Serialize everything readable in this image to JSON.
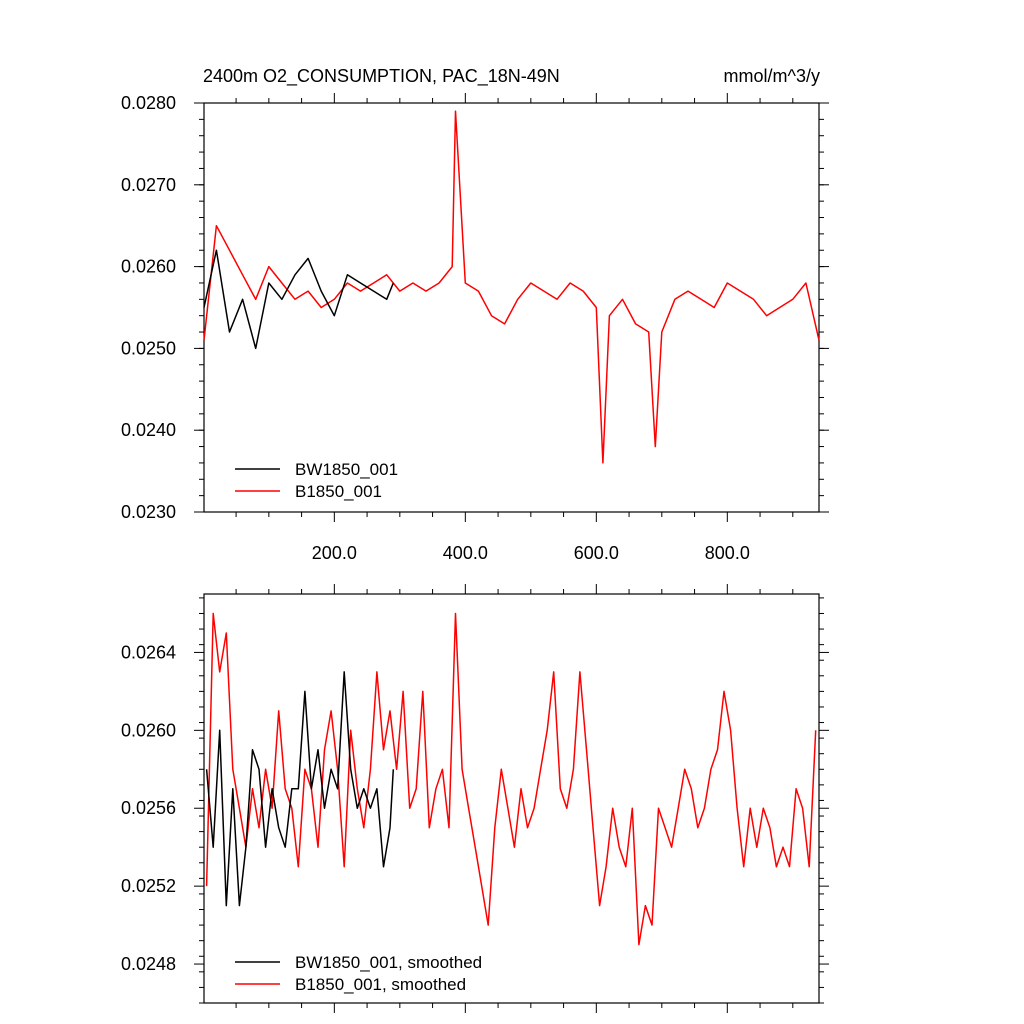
{
  "chart_data": [
    {
      "type": "line",
      "title": "2400m O2_CONSUMPTION, PAC_18N-49N",
      "units": "mmol/m^3/y",
      "xlim": [
        1,
        940
      ],
      "ylim": [
        0.023,
        0.028
      ],
      "x_ticks": [
        200,
        400,
        600,
        800
      ],
      "x_tick_labels": [
        "200.0",
        "400.0",
        "600.0",
        "800.0"
      ],
      "y_ticks": [
        0.023,
        0.024,
        0.025,
        0.026,
        0.027,
        0.028
      ],
      "y_tick_labels": [
        "0.0230",
        "0.0240",
        "0.0250",
        "0.0260",
        "0.0270",
        "0.0280"
      ],
      "legend_position": "bottom-left",
      "series": [
        {
          "name": "BW1850_001",
          "color": "#000000",
          "x": [
            1,
            20,
            40,
            60,
            80,
            100,
            120,
            140,
            160,
            180,
            200,
            220,
            240,
            260,
            280,
            290
          ],
          "y": [
            0.0255,
            0.0262,
            0.0252,
            0.0256,
            0.025,
            0.0258,
            0.0256,
            0.0259,
            0.0261,
            0.0257,
            0.0254,
            0.0259,
            0.0258,
            0.0257,
            0.0256,
            0.0258
          ]
        },
        {
          "name": "B1850_001",
          "color": "#ff0000",
          "x": [
            1,
            20,
            40,
            60,
            80,
            100,
            120,
            140,
            160,
            180,
            200,
            220,
            240,
            260,
            280,
            300,
            320,
            340,
            360,
            380,
            385,
            400,
            420,
            440,
            460,
            480,
            500,
            520,
            540,
            560,
            580,
            600,
            610,
            620,
            640,
            660,
            680,
            690,
            700,
            720,
            740,
            760,
            780,
            800,
            820,
            840,
            860,
            880,
            900,
            920,
            940
          ],
          "y": [
            0.0251,
            0.0265,
            0.0262,
            0.0259,
            0.0256,
            0.026,
            0.0258,
            0.0256,
            0.0257,
            0.0255,
            0.0256,
            0.0258,
            0.0257,
            0.0258,
            0.0259,
            0.0257,
            0.0258,
            0.0257,
            0.0258,
            0.026,
            0.0279,
            0.0258,
            0.0257,
            0.0254,
            0.0253,
            0.0256,
            0.0258,
            0.0257,
            0.0256,
            0.0258,
            0.0257,
            0.0255,
            0.0236,
            0.0254,
            0.0256,
            0.0253,
            0.0252,
            0.0238,
            0.0252,
            0.0256,
            0.0257,
            0.0256,
            0.0255,
            0.0258,
            0.0257,
            0.0256,
            0.0254,
            0.0255,
            0.0256,
            0.0258,
            0.0251
          ]
        }
      ]
    },
    {
      "type": "line",
      "xlim": [
        1,
        940
      ],
      "ylim": [
        0.0246,
        0.0267
      ],
      "x_ticks": [
        200,
        400,
        600,
        800
      ],
      "y_ticks": [
        0.0248,
        0.0252,
        0.0256,
        0.026,
        0.0264
      ],
      "y_tick_labels": [
        "0.0248",
        "0.0252",
        "0.0256",
        "0.0260",
        "0.0264"
      ],
      "legend_position": "bottom-left",
      "series": [
        {
          "name": "BW1850_001, smoothed",
          "color": "#000000",
          "x": [
            5,
            15,
            25,
            35,
            45,
            55,
            65,
            75,
            85,
            95,
            105,
            115,
            125,
            135,
            145,
            155,
            165,
            175,
            185,
            195,
            205,
            215,
            225,
            235,
            245,
            255,
            265,
            275,
            285,
            290
          ],
          "y": [
            0.0258,
            0.0254,
            0.026,
            0.0251,
            0.0257,
            0.0251,
            0.0254,
            0.0259,
            0.0258,
            0.0254,
            0.0257,
            0.0255,
            0.0254,
            0.0257,
            0.0257,
            0.0262,
            0.0257,
            0.0259,
            0.0256,
            0.0258,
            0.0257,
            0.0263,
            0.0258,
            0.0256,
            0.0257,
            0.0256,
            0.0257,
            0.0253,
            0.0255,
            0.0258
          ]
        },
        {
          "name": "B1850_001, smoothed",
          "color": "#ff0000",
          "x": [
            5,
            15,
            25,
            35,
            45,
            55,
            65,
            75,
            85,
            95,
            105,
            115,
            125,
            135,
            145,
            155,
            165,
            175,
            185,
            195,
            205,
            215,
            225,
            235,
            245,
            255,
            265,
            275,
            285,
            295,
            305,
            315,
            325,
            335,
            345,
            355,
            365,
            375,
            385,
            395,
            405,
            415,
            425,
            435,
            445,
            455,
            465,
            475,
            485,
            495,
            505,
            515,
            525,
            535,
            545,
            555,
            565,
            575,
            585,
            595,
            605,
            615,
            625,
            635,
            645,
            655,
            665,
            675,
            685,
            695,
            705,
            715,
            725,
            735,
            745,
            755,
            765,
            775,
            785,
            795,
            805,
            815,
            825,
            835,
            845,
            855,
            865,
            875,
            885,
            895,
            905,
            915,
            925,
            935
          ],
          "y": [
            0.0252,
            0.0266,
            0.0263,
            0.0265,
            0.0258,
            0.0256,
            0.0254,
            0.0257,
            0.0255,
            0.0258,
            0.0256,
            0.0261,
            0.0257,
            0.0256,
            0.0253,
            0.0258,
            0.0257,
            0.0254,
            0.0259,
            0.0261,
            0.0258,
            0.0253,
            0.026,
            0.0257,
            0.0255,
            0.0258,
            0.0263,
            0.0259,
            0.0261,
            0.0258,
            0.0262,
            0.0256,
            0.0257,
            0.0262,
            0.0255,
            0.0257,
            0.0258,
            0.0255,
            0.0266,
            0.0258,
            0.0256,
            0.0254,
            0.0252,
            0.025,
            0.0255,
            0.0258,
            0.0256,
            0.0254,
            0.0257,
            0.0255,
            0.0256,
            0.0258,
            0.026,
            0.0263,
            0.0257,
            0.0256,
            0.0258,
            0.0263,
            0.0259,
            0.0255,
            0.0251,
            0.0253,
            0.0256,
            0.0254,
            0.0253,
            0.0256,
            0.0249,
            0.0251,
            0.025,
            0.0256,
            0.0255,
            0.0254,
            0.0256,
            0.0258,
            0.0257,
            0.0255,
            0.0256,
            0.0258,
            0.0259,
            0.0262,
            0.026,
            0.0256,
            0.0253,
            0.0256,
            0.0254,
            0.0256,
            0.0255,
            0.0253,
            0.0254,
            0.0253,
            0.0257,
            0.0256,
            0.0253,
            0.026
          ]
        }
      ]
    }
  ]
}
